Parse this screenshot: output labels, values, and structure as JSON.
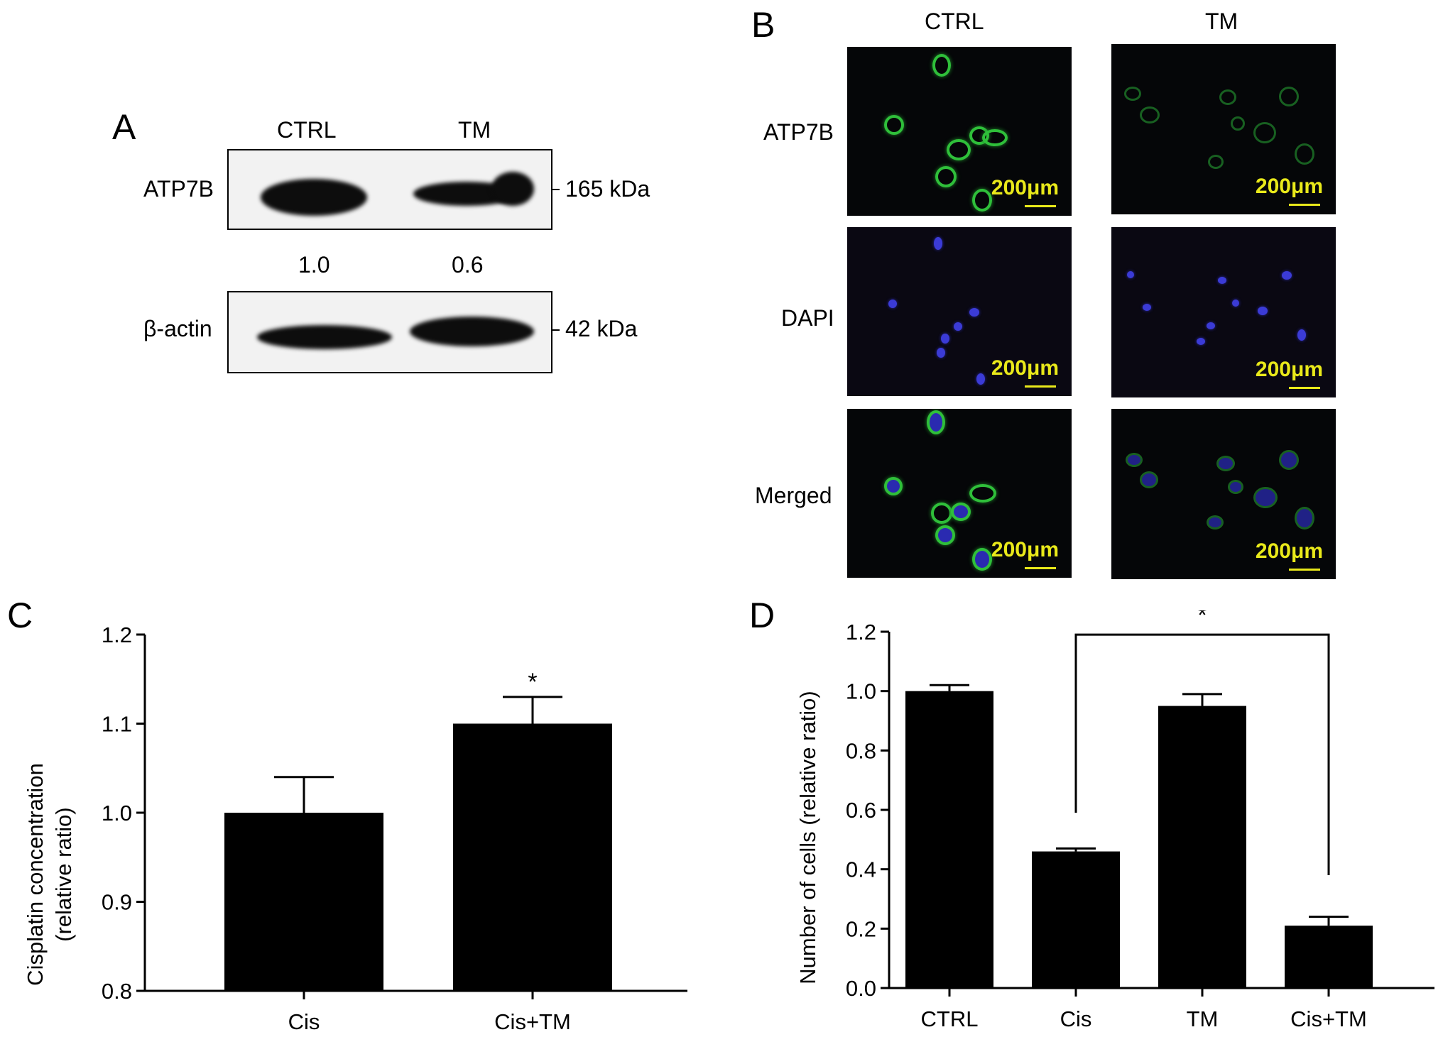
{
  "panel_a": {
    "letter": "A",
    "lanes": [
      "CTRL",
      "TM"
    ],
    "blots": [
      {
        "label": "ATP7B",
        "size": "165 kDa"
      },
      {
        "label": "β-actin",
        "size": "42 kDa"
      }
    ],
    "ratios": [
      "1.0",
      "0.6"
    ]
  },
  "panel_b": {
    "letter": "B",
    "columns": [
      "CTRL",
      "TM"
    ],
    "rows": [
      "ATP7B",
      "DAPI",
      "Merged"
    ],
    "scale_label": "200μm",
    "colors": {
      "atp7b": "#2fbf3a",
      "dapi": "#3b3bd6",
      "scale": "#e9e91a"
    }
  },
  "chart_data": [
    {
      "panel": "C",
      "type": "bar",
      "categories": [
        "Cis",
        "Cis+TM"
      ],
      "values": [
        1.0,
        1.1
      ],
      "errors": [
        0.04,
        0.03
      ],
      "significance": [
        "",
        "*"
      ],
      "ylabel_line1": "Cisplatin concentration",
      "ylabel_line2": "(relative ratio)",
      "ylim": [
        0.8,
        1.2
      ],
      "yticks": [
        "0.8",
        "0.9",
        "1.0",
        "1.1",
        "1.2"
      ],
      "bar_color": "#000000"
    },
    {
      "panel": "D",
      "type": "bar",
      "categories": [
        "CTRL",
        "Cis",
        "TM",
        "Cis+TM"
      ],
      "values": [
        1.0,
        0.46,
        0.95,
        0.21
      ],
      "errors": [
        0.02,
        0.01,
        0.04,
        0.03
      ],
      "comparison": {
        "from": "Cis",
        "to": "Cis+TM",
        "label": "*"
      },
      "ylabel": "Number of cells (relative ratio)",
      "ylim": [
        0.0,
        1.2
      ],
      "yticks": [
        "0.0",
        "0.2",
        "0.4",
        "0.6",
        "0.8",
        "1.0",
        "1.2"
      ],
      "bar_color": "#000000"
    }
  ]
}
